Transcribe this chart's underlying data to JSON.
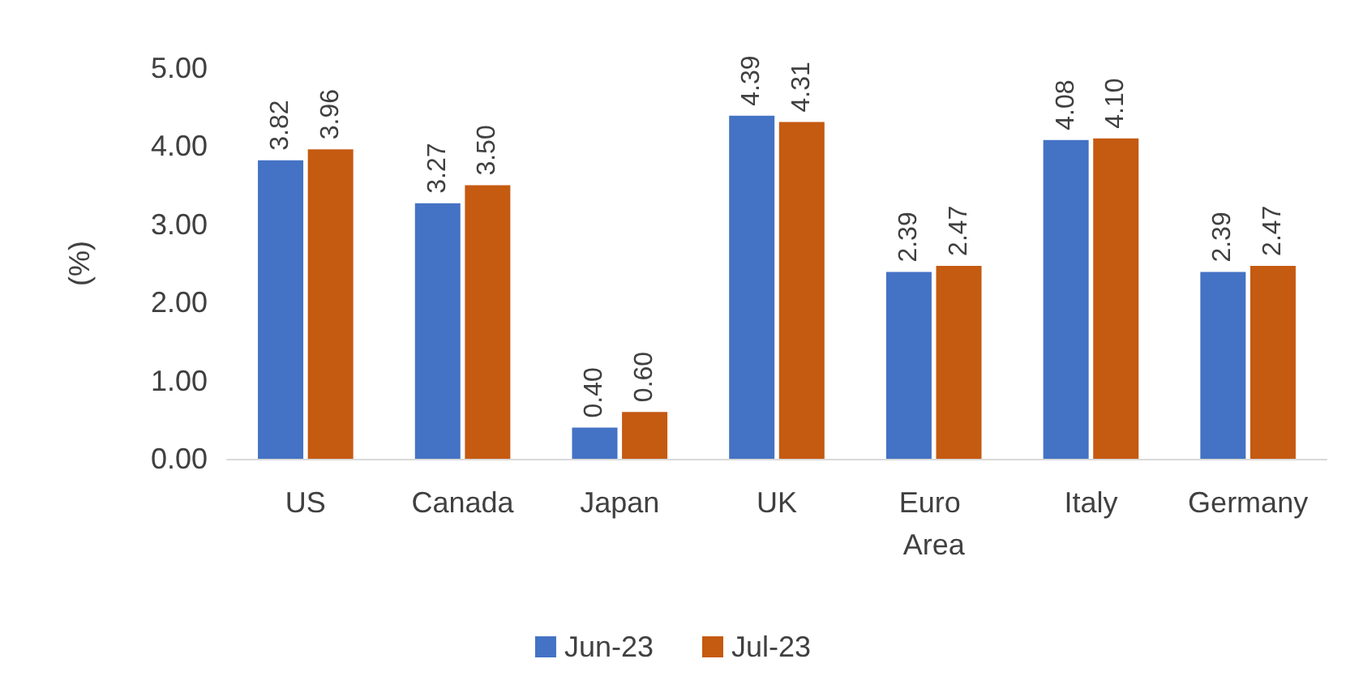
{
  "chart_data": {
    "type": "bar",
    "ylabel": "(%)",
    "categories": [
      "US",
      "Canada",
      "Japan",
      "UK",
      "Euro Area",
      "Italy",
      "Germany"
    ],
    "series": [
      {
        "name": "Jun-23",
        "color": "#4472c4",
        "values": [
          3.82,
          3.27,
          0.4,
          4.39,
          2.39,
          4.08,
          2.39
        ],
        "value_labels": [
          "3.82",
          "3.27",
          "0.40",
          "4.39",
          "2.39",
          "4.08",
          "2.39"
        ]
      },
      {
        "name": "Jul-23",
        "color": "#c55a11",
        "values": [
          3.96,
          3.5,
          0.6,
          4.31,
          2.47,
          4.1,
          2.47
        ],
        "value_labels": [
          "3.96",
          "3.50",
          "0.60",
          "4.31",
          "2.47",
          "4.10",
          "2.47"
        ]
      }
    ],
    "ylim": [
      0,
      5
    ],
    "yticks": [
      {
        "value": 0,
        "label": "0.00"
      },
      {
        "value": 1,
        "label": "1.00"
      },
      {
        "value": 2,
        "label": "2.00"
      },
      {
        "value": 3,
        "label": "3.00"
      },
      {
        "value": 4,
        "label": "4.00"
      },
      {
        "value": 5,
        "label": "5.00"
      }
    ],
    "grid": false,
    "legend": "bottom"
  }
}
